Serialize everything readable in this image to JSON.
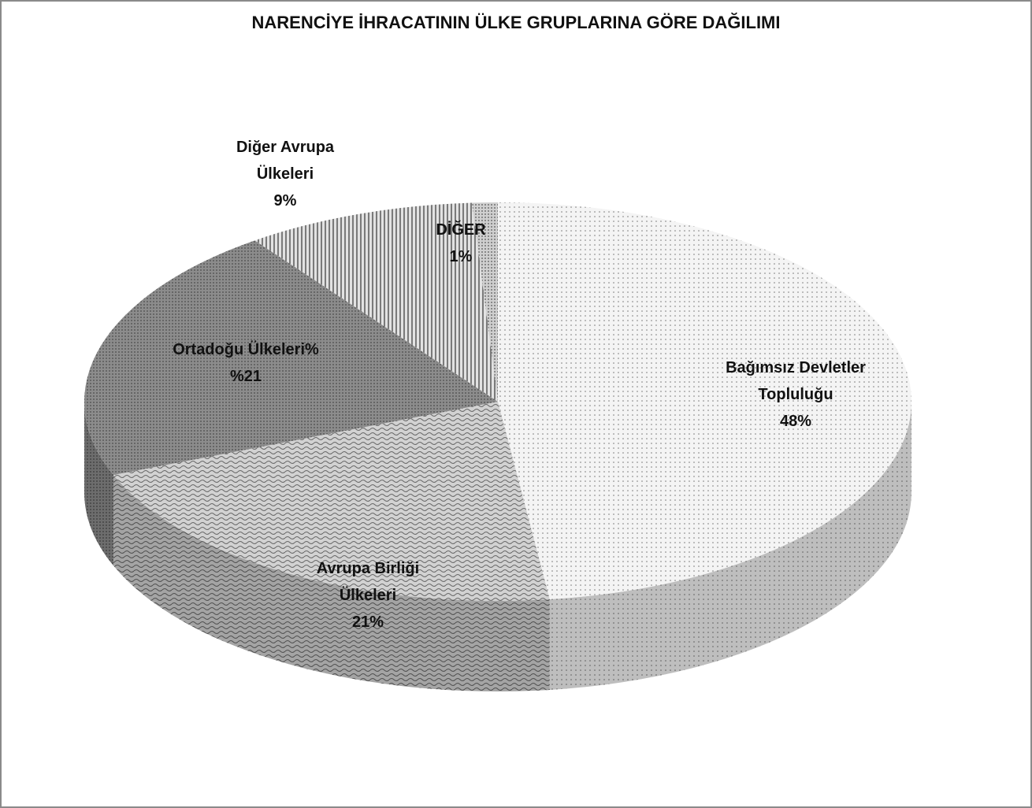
{
  "chart_data": {
    "type": "pie",
    "title": "NARENCİYE İHRACATININ ÜLKE GRUPLARINA GÖRE DAĞILIMI",
    "categories": [
      "Bağımsız Devletler Topluluğu",
      "Avrupa Birliği Ülkeleri",
      "Ortadoğu Ülkeleri%",
      "Diğer Avrupa Ülkeleri",
      "DİĞER"
    ],
    "values": [
      48,
      21,
      21,
      9,
      1
    ],
    "value_labels": [
      "48%",
      "21%",
      "%21",
      "9%",
      "1%"
    ],
    "colors": [
      "#f4f4f4",
      "#d2d2d2",
      "#8c8c8c",
      "#e2e2e2",
      "#cfcfcf"
    ]
  }
}
